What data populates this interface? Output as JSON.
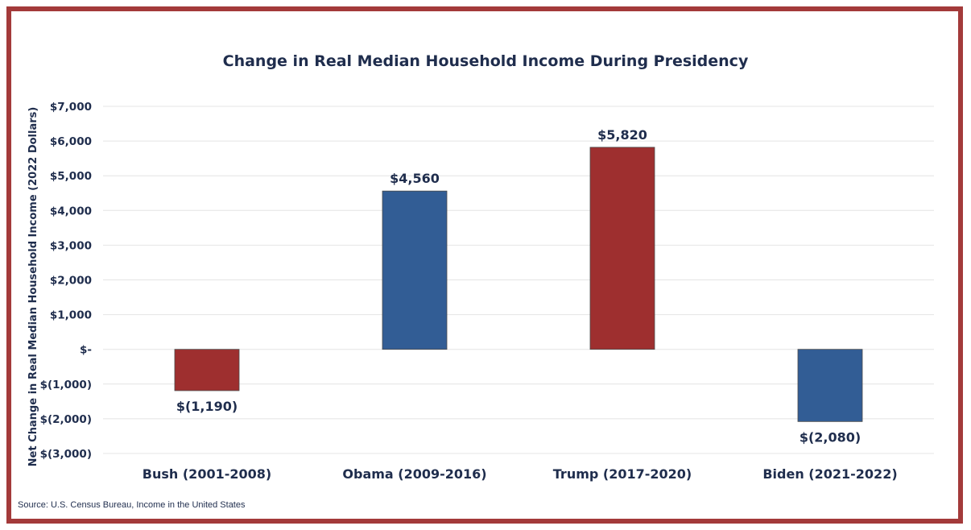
{
  "chart_data": {
    "type": "bar",
    "title": "Change in Real Median Household Income During Presidency",
    "ylabel": "Net Change in Real Median Household Income (2022 Dollars)",
    "xlabel": "",
    "categories": [
      "Bush (2001-2008)",
      "Obama (2009-2016)",
      "Trump (2017-2020)",
      "Biden (2021-2022)"
    ],
    "values": [
      -1190,
      4560,
      5820,
      -2080
    ],
    "data_labels": [
      "$(1,190)",
      "$4,560",
      "$5,820",
      "$(2,080)"
    ],
    "bar_colors": [
      "#9e2f2f",
      "#325d95",
      "#9e2f2f",
      "#325d95"
    ],
    "ylim": [
      -3000,
      7000
    ],
    "yticks": [
      7000,
      6000,
      5000,
      4000,
      3000,
      2000,
      1000,
      0,
      -1000,
      -2000,
      -3000
    ],
    "ytick_labels": [
      "$7,000",
      "$6,000",
      "$5,000",
      "$4,000",
      "$3,000",
      "$2,000",
      "$1,000",
      "$-",
      "$(1,000)",
      "$(2,000)",
      "$(3,000)"
    ],
    "grid": true,
    "legend": "none"
  },
  "source_note": "Source: U.S. Census Bureau,  Income in the United States",
  "colors": {
    "frame": "#a33a3a",
    "gridline": "#e4e4e4",
    "text": "#1f2d4d"
  }
}
